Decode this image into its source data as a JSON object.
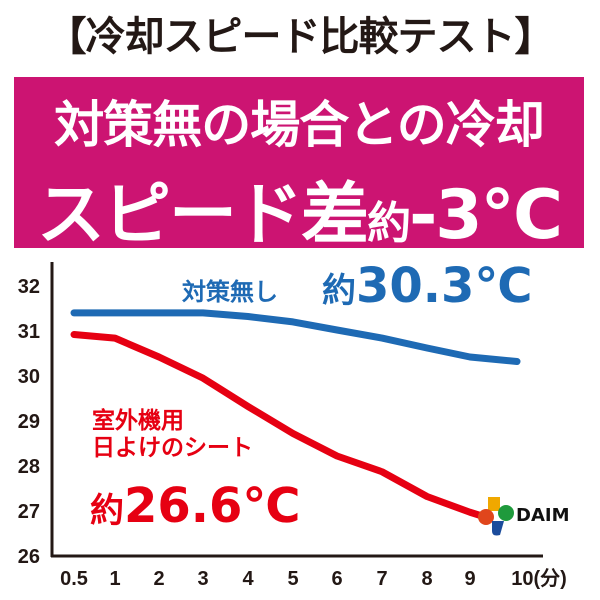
{
  "header": {
    "title": "【冷却スピード比較テスト】"
  },
  "banner": {
    "line1": "対策無の場合との冷却",
    "line2_main": "スピード差",
    "line2_approx": "約",
    "line2_value": "-3℃"
  },
  "chart_data": {
    "type": "line",
    "x": [
      0.5,
      1,
      2,
      3,
      4,
      5,
      6,
      7,
      8,
      9,
      10
    ],
    "x_tick_labels": [
      "0.5",
      "1",
      "2",
      "3",
      "4",
      "5",
      "6",
      "7",
      "8",
      "9",
      "10(分)"
    ],
    "y_tick_labels": [
      "26",
      "27",
      "28",
      "29",
      "30",
      "31",
      "32"
    ],
    "ylim": [
      26,
      32
    ],
    "grid": false,
    "series": [
      {
        "name": "対策無し",
        "color": "#1e6ab4",
        "values": [
          31.38,
          31.38,
          31.38,
          31.38,
          31.3,
          31.18,
          31.0,
          30.82,
          30.6,
          30.4,
          30.3
        ],
        "annotation_prefix": "約",
        "annotation_value": "30.3℃"
      },
      {
        "name": "室外機用\n日よけのシート",
        "name_line1": "室外機用",
        "name_line2": "日よけのシート",
        "color": "#e60012",
        "values": [
          30.9,
          30.82,
          30.4,
          29.93,
          29.3,
          28.7,
          28.2,
          27.85,
          27.3,
          26.95,
          26.6
        ],
        "annotation_prefix": "約",
        "annotation_value": "26.6℃"
      }
    ]
  },
  "logo": {
    "text": "DAIM"
  }
}
